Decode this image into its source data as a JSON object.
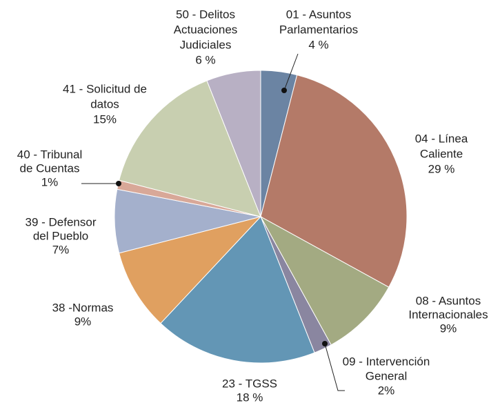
{
  "chart_data": {
    "type": "pie",
    "categories": [
      [
        "01 - Asuntos",
        "Parlamentarios"
      ],
      [
        "04 - Línea",
        "Caliente"
      ],
      [
        "08 - Asuntos",
        "Internacionales"
      ],
      [
        "09 - Intervención",
        "General"
      ],
      [
        "23 - TGSS"
      ],
      [
        "38 -Normas"
      ],
      [
        "39 - Defensor",
        "del Pueblo"
      ],
      [
        "40 - Tribunal",
        "de Cuentas"
      ],
      [
        "41 - Solicitud de",
        "datos"
      ],
      [
        "50 - Delitos",
        "Actuaciones",
        "Judiciales"
      ]
    ],
    "values": [
      4,
      29,
      9,
      2,
      18,
      9,
      7,
      1,
      15,
      6
    ],
    "value_labels": [
      "4 %",
      "29 %",
      "9%",
      "2%",
      "18 %",
      "9%",
      "7%",
      "1%",
      "15%",
      "6 %"
    ],
    "colors": [
      "#6b84a3",
      "#b47a68",
      "#a3aa82",
      "#8a86a0",
      "#6396b5",
      "#e0a060",
      "#a4b0cc",
      "#d8a898",
      "#c8cfb0",
      "#b8b0c4"
    ]
  }
}
